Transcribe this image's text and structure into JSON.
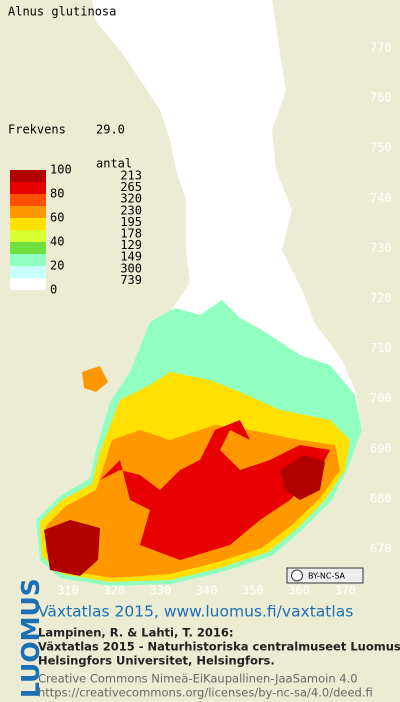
{
  "header": {
    "species": "Alnus glutinosa",
    "frequency_label": "Frekvens",
    "frequency": "29.0"
  },
  "legend": {
    "count_title": "antal",
    "colors": [
      "#b00000",
      "#e80000",
      "#ff5000",
      "#ff9800",
      "#ffe000",
      "#d8ff30",
      "#70e040",
      "#90ffc0",
      "#c8ffff",
      "#ffffff"
    ],
    "scale_labels": [
      "100",
      "80",
      "60",
      "40",
      "20",
      "0"
    ],
    "counts": [
      213,
      265,
      320,
      230,
      195,
      178,
      129,
      149,
      300,
      739
    ]
  },
  "axes": {
    "y_labels": [
      770,
      760,
      750,
      740,
      730,
      720,
      710,
      700,
      690,
      680,
      670
    ],
    "x_labels": [
      310,
      320,
      330,
      340,
      350,
      360,
      370
    ]
  },
  "license_badge": "BY-NC-SA",
  "footer": {
    "logo": "LUOMUS",
    "title": "Växtatlas 2015, www.luomus.fi/vaxtatlas",
    "citation": [
      "Lampinen, R. & Lahti, T. 2016:",
      "Växtatlas 2015 - Naturhistoriska centralmuseet Luomus,",
      "Helsingfors Universitet, Helsingfors."
    ],
    "license_lines": [
      "Creative Commons Nimeä-EiKaupallinen-JaaSamoin 4.0",
      "https://creativecommons.org/licenses/by-nc-sa/4.0/deed.fi"
    ]
  }
}
